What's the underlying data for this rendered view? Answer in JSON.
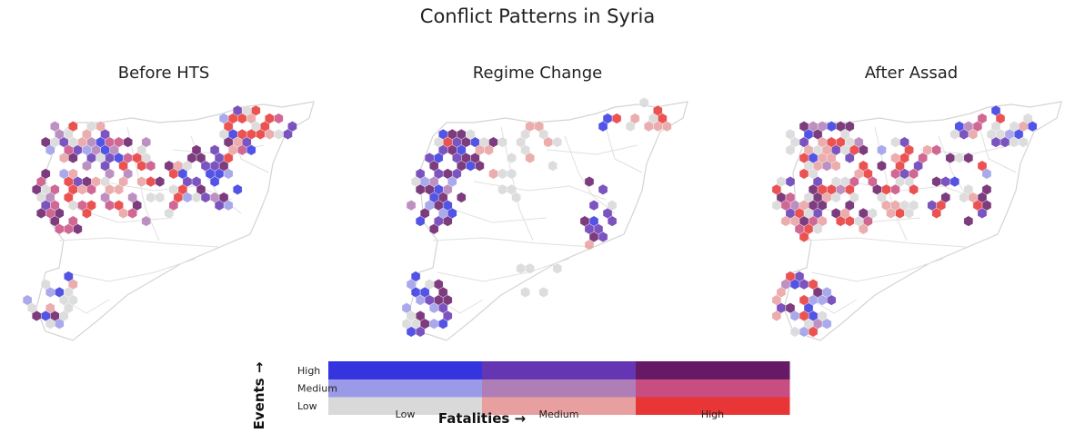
{
  "chart_data": {
    "type": "heatmap",
    "title": "Conflict Patterns in Syria",
    "panels": [
      {
        "title": "Before HTS"
      },
      {
        "title": "Regime Change"
      },
      {
        "title": "After Assad"
      }
    ],
    "legend": {
      "type": "bivariate",
      "xlabel": "Fatalities →",
      "ylabel": "Events →",
      "x_categories": [
        "Low",
        "Medium",
        "High"
      ],
      "y_categories": [
        "Low",
        "Medium",
        "High"
      ],
      "colors": [
        [
          "#d9d9d9",
          "#e89f9f",
          "#e83535"
        ],
        [
          "#9a9ae8",
          "#b07eb6",
          "#c84d80"
        ],
        [
          "#3535e0",
          "#6436b4",
          "#661a66"
        ]
      ]
    }
  }
}
